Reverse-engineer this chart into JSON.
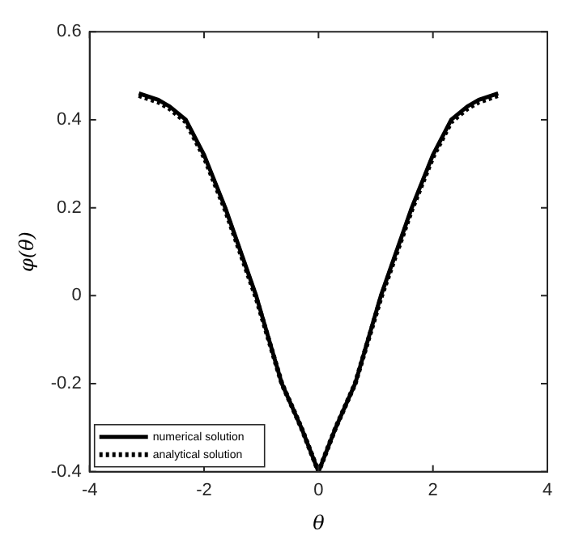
{
  "chart_data": {
    "type": "line",
    "xlabel": "θ",
    "ylabel": "φ(θ)",
    "xlim": [
      -4,
      4
    ],
    "ylim": [
      -0.4,
      0.6
    ],
    "xticks": [
      -4,
      -2,
      0,
      2,
      4
    ],
    "yticks": [
      -0.4,
      -0.2,
      0,
      0.2,
      0.4,
      0.6
    ],
    "grid": false,
    "legend": "bottom left",
    "marker": "none",
    "x": [
      -3.14,
      -2.8,
      -2.6,
      -2.32,
      -2.0,
      -1.63,
      -1.09,
      -0.64,
      -0.3,
      0,
      0.3,
      0.64,
      1.09,
      1.63,
      2.0,
      2.32,
      2.6,
      2.8,
      3.14
    ],
    "series": [
      {
        "name": "numerical solution",
        "color": "#000000",
        "line_style": "solid",
        "values": [
          0.46,
          0.445,
          0.43,
          0.4,
          0.32,
          0.2,
          0,
          -0.2,
          -0.3,
          -0.4,
          -0.3,
          -0.2,
          0,
          0.2,
          0.32,
          0.4,
          0.43,
          0.445,
          0.46
        ]
      },
      {
        "name": "analytical solution",
        "color": "#000000",
        "line_style": "dotted",
        "values": [
          0.455,
          0.44,
          0.425,
          0.395,
          0.315,
          0.195,
          -0.005,
          -0.2,
          -0.3,
          -0.4,
          -0.3,
          -0.2,
          -0.005,
          0.195,
          0.315,
          0.395,
          0.425,
          0.44,
          0.455
        ]
      }
    ]
  }
}
